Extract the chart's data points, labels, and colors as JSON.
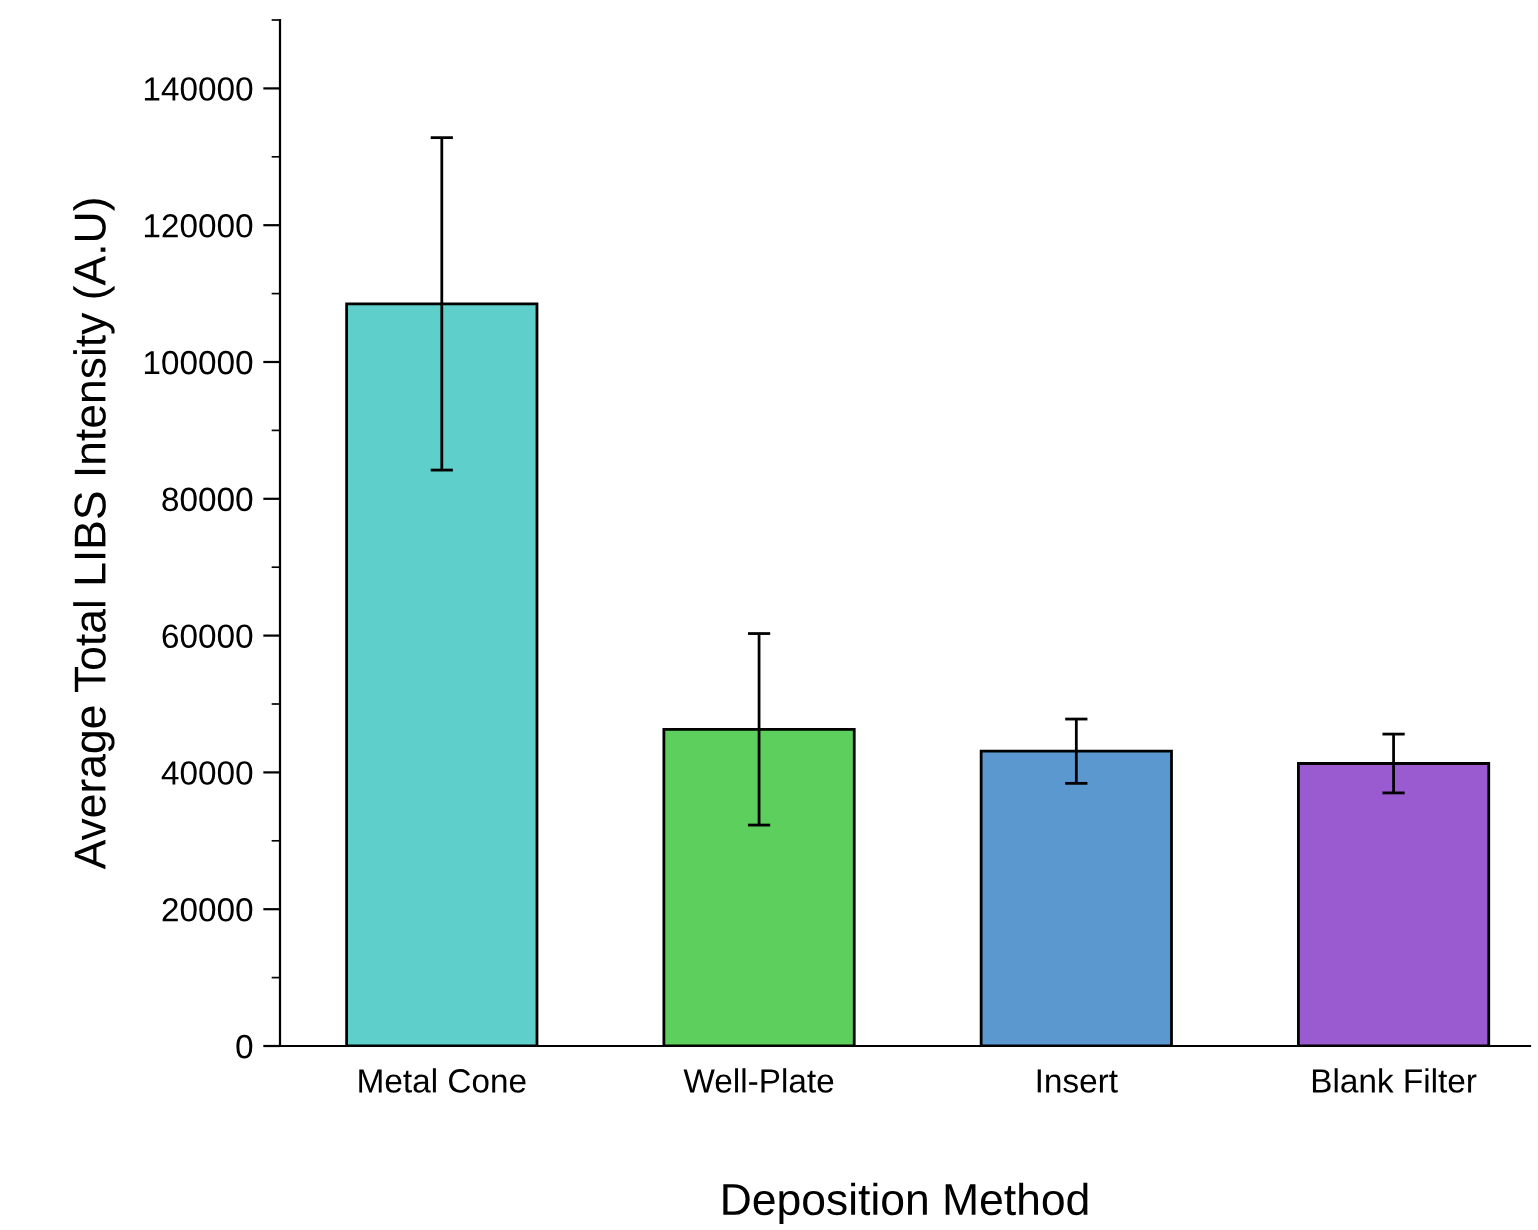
{
  "chart_data": {
    "type": "bar",
    "xlabel": "Deposition Method",
    "ylabel": "Average Total LIBS Intensity (A.U)",
    "categories": [
      "Metal Cone",
      "Well-Plate",
      "Insert",
      "Blank Filter"
    ],
    "values": [
      108500,
      46300,
      43100,
      41300
    ],
    "errors": [
      24300,
      14000,
      4700,
      4300
    ],
    "colors": [
      "#5ecfca",
      "#5ccf5c",
      "#5b98cf",
      "#995bcf"
    ],
    "ylim": [
      0,
      150000
    ],
    "yticks": [
      0,
      {
        "value": 10000,
        "label": null
      },
      20000,
      {
        "value": 30000,
        "label": null
      },
      40000,
      {
        "value": 50000,
        "label": null
      },
      60000,
      {
        "value": 70000,
        "label": null
      },
      80000,
      {
        "value": 90000,
        "label": null
      },
      100000,
      {
        "value": 110000,
        "label": null
      },
      120000,
      {
        "value": 130000,
        "label": null
      },
      140000,
      {
        "value": 150000,
        "label": null
      }
    ],
    "grid": false,
    "legend": false
  }
}
